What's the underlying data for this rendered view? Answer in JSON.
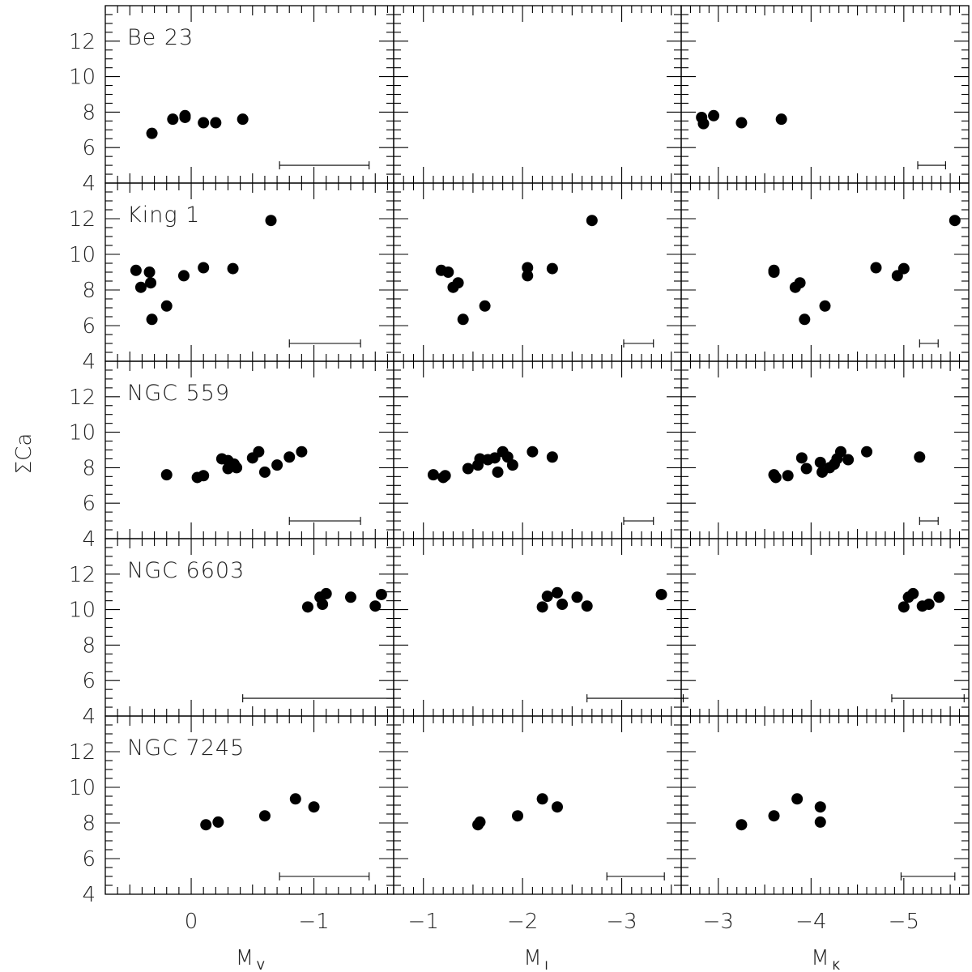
{
  "chart_data": {
    "type": "scatter",
    "ylabel": "ΣCa",
    "ylim": [
      4,
      14
    ],
    "yticks": [
      4,
      6,
      8,
      10,
      12
    ],
    "columns": [
      {
        "xlabel_main": "M",
        "xlabel_sub": "V",
        "xlim": [
          0.7,
          -1.65
        ],
        "xticks": [
          0,
          -1
        ],
        "xticklabels": [
          "0",
          "−1"
        ]
      },
      {
        "xlabel_main": "M",
        "xlabel_sub": "I",
        "xlim": [
          -0.7,
          -3.6
        ],
        "xticks": [
          -1,
          -2,
          -3
        ],
        "xticklabels": [
          "−1",
          "−2",
          "−3"
        ]
      },
      {
        "xlabel_main": "M",
        "xlabel_sub": "K",
        "xlim": [
          -2.6,
          -5.7
        ],
        "xticks": [
          -3,
          -4,
          -5
        ],
        "xticklabels": [
          "−3",
          "−4",
          "−5"
        ]
      }
    ],
    "rows": [
      {
        "cluster": "Be 23",
        "panels": [
          {
            "points": [
              [
                0.32,
                6.8
              ],
              [
                0.15,
                7.6
              ],
              [
                0.05,
                7.8
              ],
              [
                0.05,
                7.7
              ],
              [
                -0.1,
                7.4
              ],
              [
                -0.2,
                7.4
              ],
              [
                -0.42,
                7.6
              ]
            ],
            "error_bar": [
              -0.72,
              -1.45
            ]
          },
          {
            "points": [],
            "error_bar": null
          },
          {
            "points": [
              [
                -2.82,
                7.7
              ],
              [
                -2.84,
                7.35
              ],
              [
                -2.95,
                7.8
              ],
              [
                -3.25,
                7.4
              ],
              [
                -3.68,
                7.6
              ]
            ],
            "error_bar": [
              -5.15,
              -5.45
            ]
          }
        ]
      },
      {
        "cluster": "King 1",
        "panels": [
          {
            "points": [
              [
                0.45,
                9.1
              ],
              [
                0.41,
                8.15
              ],
              [
                0.34,
                9.0
              ],
              [
                0.33,
                8.4
              ],
              [
                0.32,
                6.35
              ],
              [
                0.2,
                7.1
              ],
              [
                0.06,
                8.8
              ],
              [
                -0.1,
                9.25
              ],
              [
                -0.34,
                9.2
              ],
              [
                -0.65,
                11.9
              ]
            ],
            "error_bar": [
              -0.8,
              -1.38
            ]
          },
          {
            "points": [
              [
                -1.18,
                9.1
              ],
              [
                -1.25,
                9.0
              ],
              [
                -1.3,
                8.15
              ],
              [
                -1.35,
                8.4
              ],
              [
                -1.4,
                6.35
              ],
              [
                -1.62,
                7.1
              ],
              [
                -2.05,
                8.8
              ],
              [
                -2.05,
                9.25
              ],
              [
                -2.3,
                9.2
              ],
              [
                -2.7,
                11.9
              ]
            ],
            "error_bar": [
              -3.02,
              -3.32
            ]
          },
          {
            "points": [
              [
                -3.6,
                9.1
              ],
              [
                -3.6,
                9.0
              ],
              [
                -3.83,
                8.15
              ],
              [
                -3.88,
                8.4
              ],
              [
                -3.93,
                6.35
              ],
              [
                -4.15,
                7.1
              ],
              [
                -4.7,
                9.25
              ],
              [
                -4.93,
                8.8
              ],
              [
                -5.0,
                9.2
              ],
              [
                -5.55,
                11.9
              ]
            ],
            "error_bar": [
              -5.17,
              -5.37
            ]
          }
        ]
      },
      {
        "cluster": "NGC 559",
        "panels": [
          {
            "points": [
              [
                0.2,
                7.6
              ],
              [
                -0.05,
                7.45
              ],
              [
                -0.1,
                7.55
              ],
              [
                -0.25,
                8.5
              ],
              [
                -0.3,
                7.95
              ],
              [
                -0.3,
                8.4
              ],
              [
                -0.35,
                8.2
              ],
              [
                -0.37,
                8.0
              ],
              [
                -0.5,
                8.55
              ],
              [
                -0.55,
                8.9
              ],
              [
                -0.6,
                7.75
              ],
              [
                -0.7,
                8.15
              ],
              [
                -0.8,
                8.6
              ],
              [
                -0.9,
                8.9
              ]
            ],
            "error_bar": [
              -0.8,
              -1.38
            ]
          },
          {
            "points": [
              [
                -1.1,
                7.6
              ],
              [
                -1.2,
                7.45
              ],
              [
                -1.22,
                7.55
              ],
              [
                -1.45,
                7.95
              ],
              [
                -1.55,
                8.15
              ],
              [
                -1.57,
                8.5
              ],
              [
                -1.65,
                8.45
              ],
              [
                -1.72,
                8.55
              ],
              [
                -1.75,
                7.75
              ],
              [
                -1.8,
                8.9
              ],
              [
                -1.85,
                8.6
              ],
              [
                -1.9,
                8.15
              ],
              [
                -2.1,
                8.9
              ],
              [
                -2.3,
                8.6
              ]
            ],
            "error_bar": [
              -3.02,
              -3.32
            ]
          },
          {
            "points": [
              [
                -3.6,
                7.6
              ],
              [
                -3.62,
                7.45
              ],
              [
                -3.75,
                7.55
              ],
              [
                -3.9,
                8.55
              ],
              [
                -3.95,
                7.95
              ],
              [
                -4.1,
                8.3
              ],
              [
                -4.12,
                7.75
              ],
              [
                -4.2,
                8.0
              ],
              [
                -4.25,
                8.2
              ],
              [
                -4.28,
                8.5
              ],
              [
                -4.32,
                8.9
              ],
              [
                -4.4,
                8.45
              ],
              [
                -4.6,
                8.9
              ],
              [
                -5.17,
                8.6
              ]
            ],
            "error_bar": [
              -5.17,
              -5.37
            ]
          }
        ]
      },
      {
        "cluster": "NGC 6603",
        "panels": [
          {
            "points": [
              [
                -0.95,
                10.15
              ],
              [
                -1.05,
                10.7
              ],
              [
                -1.07,
                10.3
              ],
              [
                -1.1,
                10.9
              ],
              [
                -1.3,
                10.7
              ],
              [
                -1.5,
                10.2
              ],
              [
                -1.55,
                10.85
              ]
            ],
            "error_bar": [
              -0.42,
              -1.65
            ]
          },
          {
            "points": [
              [
                -2.2,
                10.15
              ],
              [
                -2.25,
                10.75
              ],
              [
                -2.35,
                10.95
              ],
              [
                -2.4,
                10.3
              ],
              [
                -2.55,
                10.7
              ],
              [
                -2.65,
                10.2
              ],
              [
                -3.4,
                10.85
              ]
            ],
            "error_bar": [
              -2.65,
              -3.62
            ]
          },
          {
            "points": [
              [
                -5.0,
                10.15
              ],
              [
                -5.05,
                10.7
              ],
              [
                -5.1,
                10.9
              ],
              [
                -5.2,
                10.2
              ],
              [
                -5.27,
                10.3
              ],
              [
                -5.38,
                10.7
              ]
            ],
            "error_bar": [
              -4.87,
              -5.65
            ]
          }
        ]
      },
      {
        "cluster": "NGC 7245",
        "panels": [
          {
            "points": [
              [
                -0.12,
                7.9
              ],
              [
                -0.22,
                8.05
              ],
              [
                -0.6,
                8.4
              ],
              [
                -0.85,
                9.35
              ],
              [
                -1.0,
                8.9
              ]
            ],
            "error_bar": [
              -0.72,
              -1.45
            ]
          },
          {
            "points": [
              [
                -1.55,
                7.9
              ],
              [
                -1.57,
                8.05
              ],
              [
                -1.95,
                8.4
              ],
              [
                -2.2,
                9.35
              ],
              [
                -2.35,
                8.9
              ]
            ],
            "error_bar": [
              -2.85,
              -3.43
            ]
          },
          {
            "points": [
              [
                -3.25,
                7.9
              ],
              [
                -3.6,
                8.4
              ],
              [
                -3.85,
                9.35
              ],
              [
                -4.1,
                8.9
              ],
              [
                -4.1,
                8.05
              ]
            ],
            "error_bar": [
              -4.97,
              -5.55
            ]
          }
        ]
      }
    ]
  }
}
